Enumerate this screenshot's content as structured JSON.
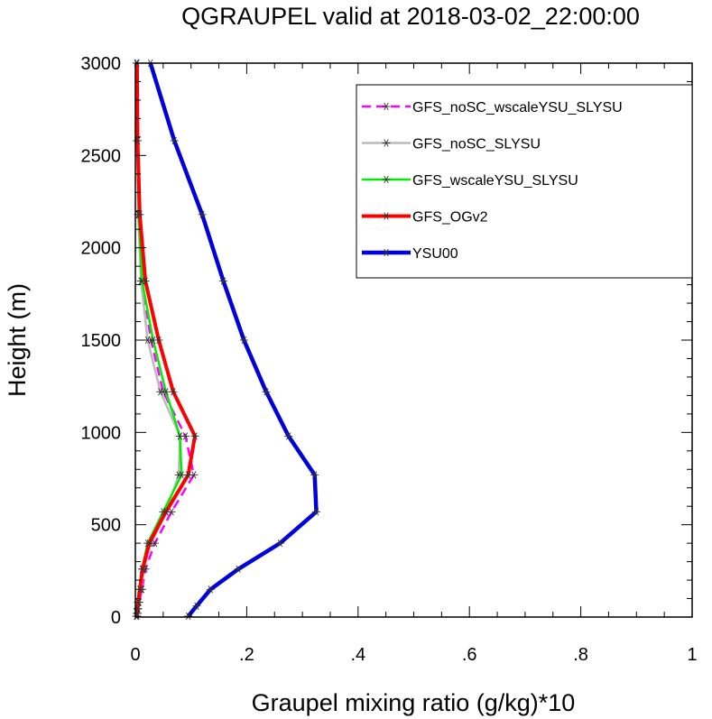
{
  "chart_data": {
    "type": "line",
    "title": "QGRAUPEL valid at 2018-03-02_22:00:00",
    "xlabel": "Graupel mixing ratio (g/kg)*10",
    "ylabel": "Height (m)",
    "xlim": [
      0,
      1
    ],
    "ylim": [
      0,
      3000
    ],
    "xticks": [
      0,
      0.2,
      0.4,
      0.6,
      0.8,
      1
    ],
    "xtick_labels": [
      "0",
      ".2",
      ".4",
      ".6",
      ".8",
      "1"
    ],
    "yticks": [
      0,
      500,
      1000,
      1500,
      2000,
      2500,
      3000
    ],
    "ytick_labels": [
      "0",
      "500",
      "1000",
      "1500",
      "2000",
      "2500",
      "3000"
    ],
    "grid": false,
    "legend_position": "top-right",
    "series": [
      {
        "name": "GFS_noSC_wscaleYSU_SLYSU",
        "color": "#ff00ff",
        "dash": "dashed",
        "points": [
          [
            0.003,
            5
          ],
          [
            0.004,
            20
          ],
          [
            0.005,
            45
          ],
          [
            0.007,
            80
          ],
          [
            0.012,
            150
          ],
          [
            0.018,
            260
          ],
          [
            0.035,
            400
          ],
          [
            0.065,
            570
          ],
          [
            0.105,
            770
          ],
          [
            0.09,
            980
          ],
          [
            0.05,
            1220
          ],
          [
            0.028,
            1500
          ],
          [
            0.012,
            1820
          ],
          [
            0.006,
            2180
          ],
          [
            0.004,
            2580
          ],
          [
            0.003,
            3000
          ]
        ]
      },
      {
        "name": "GFS_noSC_SLYSU",
        "color": "#bbbbbb",
        "dash": "solid",
        "points": [
          [
            0.002,
            5
          ],
          [
            0.003,
            20
          ],
          [
            0.004,
            45
          ],
          [
            0.006,
            80
          ],
          [
            0.01,
            150
          ],
          [
            0.015,
            260
          ],
          [
            0.028,
            400
          ],
          [
            0.055,
            570
          ],
          [
            0.078,
            770
          ],
          [
            0.08,
            980
          ],
          [
            0.045,
            1220
          ],
          [
            0.022,
            1500
          ],
          [
            0.01,
            1820
          ],
          [
            0.005,
            2180
          ],
          [
            0.003,
            2580
          ],
          [
            0.002,
            3000
          ]
        ]
      },
      {
        "name": "GFS_wscaleYSU_SLYSU",
        "color": "#00ee00",
        "dash": "solid",
        "points": [
          [
            0.002,
            5
          ],
          [
            0.003,
            20
          ],
          [
            0.004,
            45
          ],
          [
            0.005,
            80
          ],
          [
            0.008,
            150
          ],
          [
            0.012,
            260
          ],
          [
            0.022,
            400
          ],
          [
            0.05,
            570
          ],
          [
            0.083,
            770
          ],
          [
            0.08,
            980
          ],
          [
            0.055,
            1220
          ],
          [
            0.032,
            1500
          ],
          [
            0.012,
            1820
          ],
          [
            0.006,
            2180
          ],
          [
            0.004,
            2580
          ],
          [
            0.003,
            3000
          ]
        ]
      },
      {
        "name": "GFS_OGv2",
        "color": "#ff0000",
        "dash": "solid",
        "points": [
          [
            0.002,
            5
          ],
          [
            0.003,
            20
          ],
          [
            0.004,
            45
          ],
          [
            0.005,
            80
          ],
          [
            0.008,
            150
          ],
          [
            0.013,
            260
          ],
          [
            0.025,
            400
          ],
          [
            0.055,
            570
          ],
          [
            0.095,
            770
          ],
          [
            0.107,
            980
          ],
          [
            0.068,
            1220
          ],
          [
            0.042,
            1500
          ],
          [
            0.018,
            1820
          ],
          [
            0.008,
            2180
          ],
          [
            0.004,
            2580
          ],
          [
            0.003,
            3000
          ]
        ]
      },
      {
        "name": "YSU00",
        "color": "#0000dd",
        "dash": "solid",
        "points": [
          [
            0.095,
            5
          ],
          [
            0.11,
            60
          ],
          [
            0.135,
            150
          ],
          [
            0.185,
            260
          ],
          [
            0.26,
            400
          ],
          [
            0.325,
            570
          ],
          [
            0.322,
            770
          ],
          [
            0.275,
            980
          ],
          [
            0.235,
            1220
          ],
          [
            0.195,
            1500
          ],
          [
            0.158,
            1820
          ],
          [
            0.12,
            2180
          ],
          [
            0.07,
            2580
          ],
          [
            0.027,
            3000
          ]
        ]
      }
    ]
  }
}
